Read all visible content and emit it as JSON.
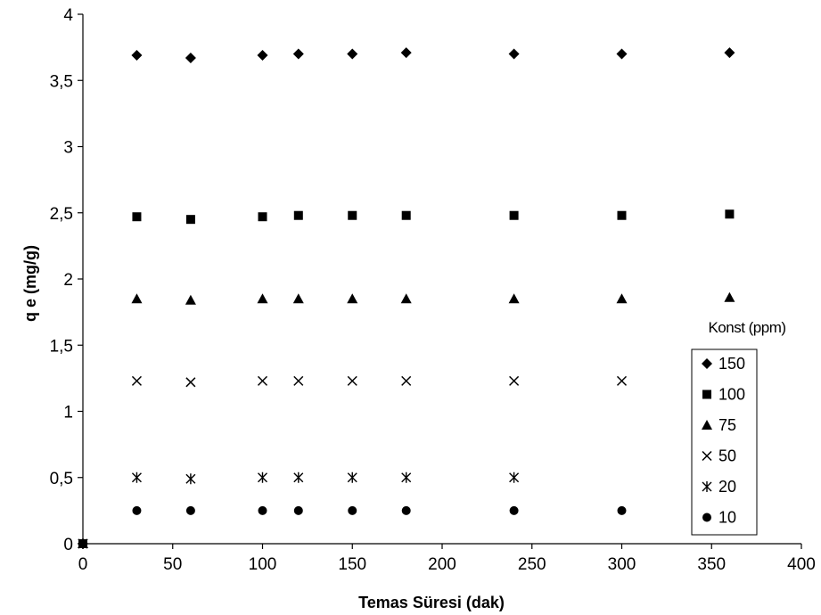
{
  "chart_data": {
    "type": "scatter",
    "xlabel": "Temas Süresi (dak)",
    "ylabel": "q e (mg/g)",
    "xlim": [
      0,
      400
    ],
    "ylim": [
      0,
      4
    ],
    "x_ticks": [
      0,
      50,
      100,
      150,
      200,
      250,
      300,
      350,
      400
    ],
    "y_ticks": [
      0,
      0.5,
      1,
      1.5,
      2,
      2.5,
      3,
      3.5,
      4
    ],
    "x_tick_labels": [
      "0",
      "50",
      "100",
      "150",
      "200",
      "250",
      "300",
      "350",
      "400"
    ],
    "y_tick_labels": [
      "0",
      "0,5",
      "1",
      "1,5",
      "2",
      "2,5",
      "3",
      "3,5",
      "4"
    ],
    "grid": false,
    "legend": {
      "title": "Konst (ppm)",
      "placement": "right"
    },
    "series": [
      {
        "name": "150",
        "marker": "diamond",
        "points": [
          [
            0,
            0
          ],
          [
            30,
            3.69
          ],
          [
            60,
            3.67
          ],
          [
            100,
            3.69
          ],
          [
            120,
            3.7
          ],
          [
            150,
            3.7
          ],
          [
            180,
            3.71
          ],
          [
            240,
            3.7
          ],
          [
            300,
            3.7
          ],
          [
            360,
            3.71
          ]
        ]
      },
      {
        "name": "100",
        "marker": "square",
        "points": [
          [
            0,
            0
          ],
          [
            30,
            2.47
          ],
          [
            60,
            2.45
          ],
          [
            100,
            2.47
          ],
          [
            120,
            2.48
          ],
          [
            150,
            2.48
          ],
          [
            180,
            2.48
          ],
          [
            240,
            2.48
          ],
          [
            300,
            2.48
          ],
          [
            360,
            2.49
          ]
        ]
      },
      {
        "name": "75",
        "marker": "triangle",
        "points": [
          [
            0,
            0
          ],
          [
            30,
            1.85
          ],
          [
            60,
            1.84
          ],
          [
            100,
            1.85
          ],
          [
            120,
            1.85
          ],
          [
            150,
            1.85
          ],
          [
            180,
            1.85
          ],
          [
            240,
            1.85
          ],
          [
            300,
            1.85
          ],
          [
            360,
            1.86
          ]
        ]
      },
      {
        "name": "50",
        "marker": "x",
        "points": [
          [
            0,
            0
          ],
          [
            30,
            1.23
          ],
          [
            60,
            1.22
          ],
          [
            100,
            1.23
          ],
          [
            120,
            1.23
          ],
          [
            150,
            1.23
          ],
          [
            180,
            1.23
          ],
          [
            240,
            1.23
          ],
          [
            300,
            1.23
          ]
        ]
      },
      {
        "name": "20",
        "marker": "star",
        "points": [
          [
            0,
            0
          ],
          [
            30,
            0.5
          ],
          [
            60,
            0.49
          ],
          [
            100,
            0.5
          ],
          [
            120,
            0.5
          ],
          [
            150,
            0.5
          ],
          [
            180,
            0.5
          ],
          [
            240,
            0.5
          ]
        ]
      },
      {
        "name": "10",
        "marker": "circle",
        "points": [
          [
            0,
            0
          ],
          [
            30,
            0.25
          ],
          [
            60,
            0.25
          ],
          [
            100,
            0.25
          ],
          [
            120,
            0.25
          ],
          [
            150,
            0.25
          ],
          [
            180,
            0.25
          ],
          [
            240,
            0.25
          ],
          [
            300,
            0.25
          ]
        ]
      }
    ]
  }
}
